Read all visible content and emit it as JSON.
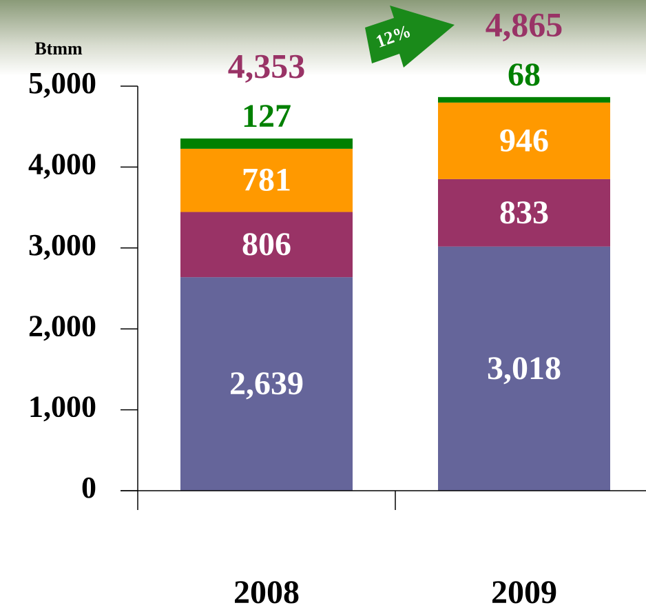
{
  "chart_data": {
    "type": "stacked-bar",
    "y_label": "Btmm",
    "categories": [
      "2008",
      "2009"
    ],
    "series": [
      {
        "color": "#65659a",
        "values": [
          2639,
          3018
        ],
        "value_labels": [
          "2,639",
          "3,018"
        ]
      },
      {
        "color": "#993366",
        "values": [
          806,
          833
        ]
      },
      {
        "color": "#ff9900",
        "values": [
          781,
          946
        ]
      },
      {
        "color": "#008000",
        "values": [
          127,
          68
        ]
      }
    ],
    "totals": [
      4353,
      4865
    ],
    "total_labels": [
      "4,353",
      "4,865"
    ],
    "annotation": "12%",
    "ylim": [
      0,
      5000
    ],
    "yticks": [
      0,
      {
        "value": 1000,
        "label": "1,000"
      },
      {
        "value": 2000,
        "label": "2,000"
      },
      {
        "value": 3000,
        "label": "3,000"
      },
      {
        "value": 4000,
        "label": "4,000"
      },
      {
        "value": 5000,
        "label": "5,000"
      }
    ]
  }
}
